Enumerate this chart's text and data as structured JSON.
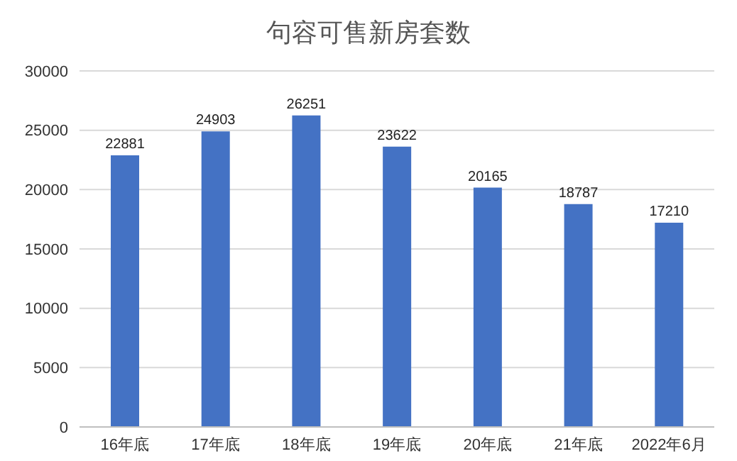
{
  "chart_data": {
    "type": "bar",
    "title": "句容可售新房套数",
    "categories": [
      "16年底",
      "17年底",
      "18年底",
      "19年底",
      "20年底",
      "21年底",
      "2022年6月"
    ],
    "values": [
      22881,
      24903,
      26251,
      23622,
      20165,
      18787,
      17210
    ],
    "color": "#4472c4",
    "ylim": [
      0,
      30000
    ],
    "yticks": [
      0,
      5000,
      10000,
      15000,
      20000,
      25000,
      30000
    ],
    "grid": "y",
    "data_labels": true
  }
}
